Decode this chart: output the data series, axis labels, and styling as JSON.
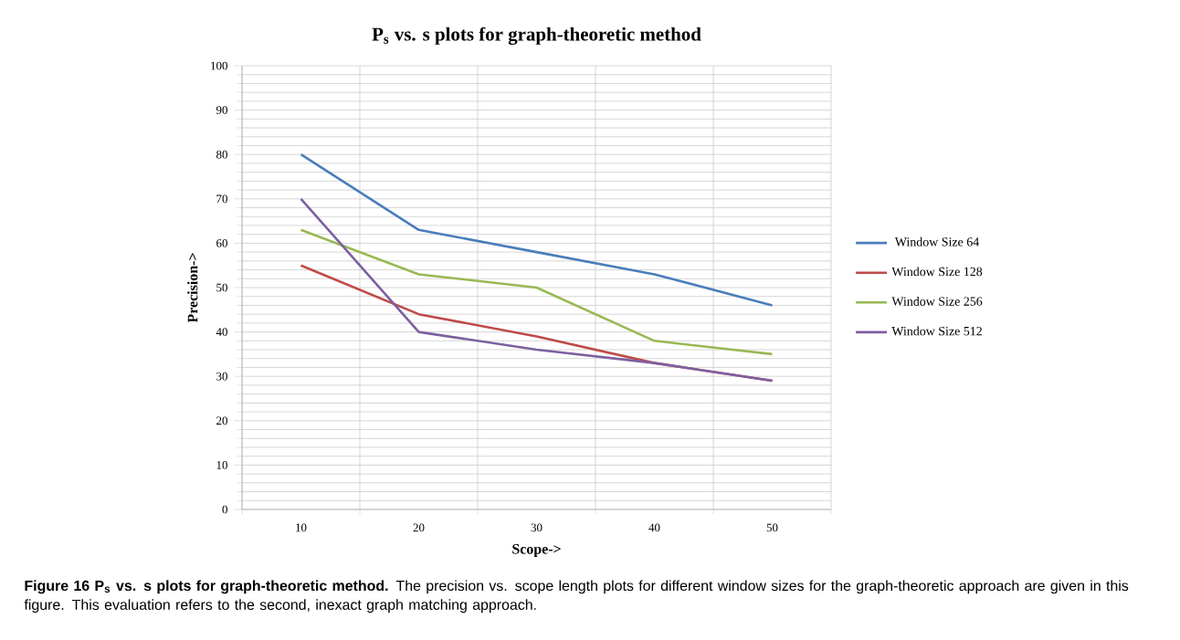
{
  "chart_data": {
    "type": "line",
    "title": "P$_{s}$ vs. s plots for graph-theoretic method",
    "xlabel": "Scope->",
    "ylabel": "Precision->",
    "categories": [
      "10",
      "20",
      "30",
      "40",
      "50"
    ],
    "series": [
      {
        "name": "Window Size 64",
        "color": "#4a7ebb",
        "values": [
          80,
          63,
          58,
          53,
          46
        ]
      },
      {
        "name": "Window Size 128",
        "color": "#be4b48",
        "values": [
          55,
          44,
          39,
          33,
          29
        ]
      },
      {
        "name": "Window Size 256",
        "color": "#98b954",
        "values": [
          63,
          53,
          50,
          38,
          35
        ]
      },
      {
        "name": "Window Size 512",
        "color": "#7d60a0",
        "values": [
          70,
          40,
          36,
          33,
          29
        ]
      }
    ],
    "ylim": [
      0,
      100
    ],
    "yticks": [
      0,
      10,
      20,
      30,
      40,
      50,
      60,
      70,
      80,
      90,
      100
    ],
    "grid": true,
    "legend": "right",
    "marker": "none",
    "line_style": "solid",
    "annotations": [
      "**Figure 16 P$_{s}$ vs. s plots for graph-theoretic method.** The precision vs. scope length plots for different window sizes for the graph-theoretic approach are given in this figure. This evaluation refers to the second, inexact graph matching approach."
    ]
  }
}
